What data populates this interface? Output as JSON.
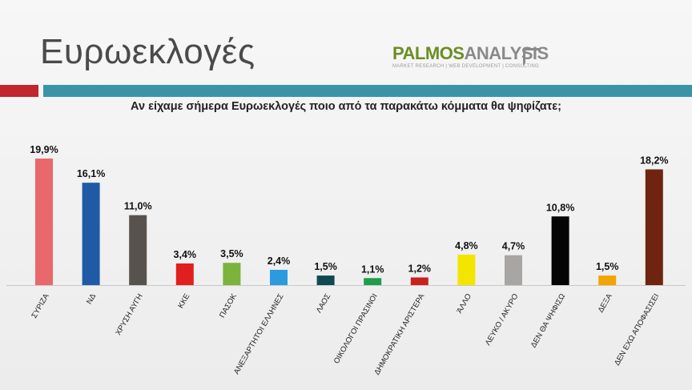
{
  "header": {
    "title": "Ευρωεκλογές",
    "logo_main_1": "PALMOS",
    "logo_main_2": "ANALYSIS",
    "logo_sub": "MARKET RESEARCH | WEB DEVELOPMENT | CONSULTING"
  },
  "colors": {
    "accent_red": "#c1272d",
    "accent_teal": "#3b93a8"
  },
  "chart_data": {
    "type": "bar",
    "title": "Αν είχαμε σήμερα Ευρωεκλογές ποιο από τα παρακάτω κόμματα θα ψηφίζατε;",
    "categories": [
      "ΣΥΡΙΖΑ",
      "ΝΔ",
      "ΧΡΥΣΗ ΑΥΓΗ",
      "ΚΚΕ",
      "ΠΑΣΟΚ",
      "ΑΝΕΞΑΡΤΗΤΟΙ ΕΛΛΗΝΕΣ",
      "ΛΑΟΣ",
      "ΟΙΚΟΛΟΓΟΙ ΠΡΑΣΙΝΟΙ",
      "ΔΗΜΟΚΡΑΤΙΚΗ ΑΡΙΣΤΕΡΑ",
      "ΆΛΛΟ",
      "ΛΕΥΚΟ / ΑΚΥΡΟ",
      "ΔΕΝ ΘΑ ΨΗΦΙΣΩ",
      "ΔΕΞΑ",
      "ΔΕΝ ΕΧΩ ΑΠΟΦΑΣΙΣΕΙ"
    ],
    "values": [
      19.9,
      16.1,
      11.0,
      3.4,
      3.5,
      2.4,
      1.5,
      1.1,
      1.2,
      4.8,
      4.7,
      10.8,
      1.5,
      18.2
    ],
    "labels": [
      "19,9%",
      "16,1%",
      "11,0%",
      "3,4%",
      "3,5%",
      "2,4%",
      "1,5%",
      "1,1%",
      "1,2%",
      "4,8%",
      "4,7%",
      "10,8%",
      "1,5%",
      "18,2%"
    ],
    "colors": [
      "#e8686c",
      "#1f5aa6",
      "#58524e",
      "#e0201e",
      "#7bb33c",
      "#2b9be0",
      "#0f4a52",
      "#1e9e4a",
      "#c8201e",
      "#f2e600",
      "#a8a6a4",
      "#050505",
      "#f2a400",
      "#6e2410"
    ],
    "ylim": [
      0,
      21
    ],
    "grid": false,
    "legend": "none"
  }
}
